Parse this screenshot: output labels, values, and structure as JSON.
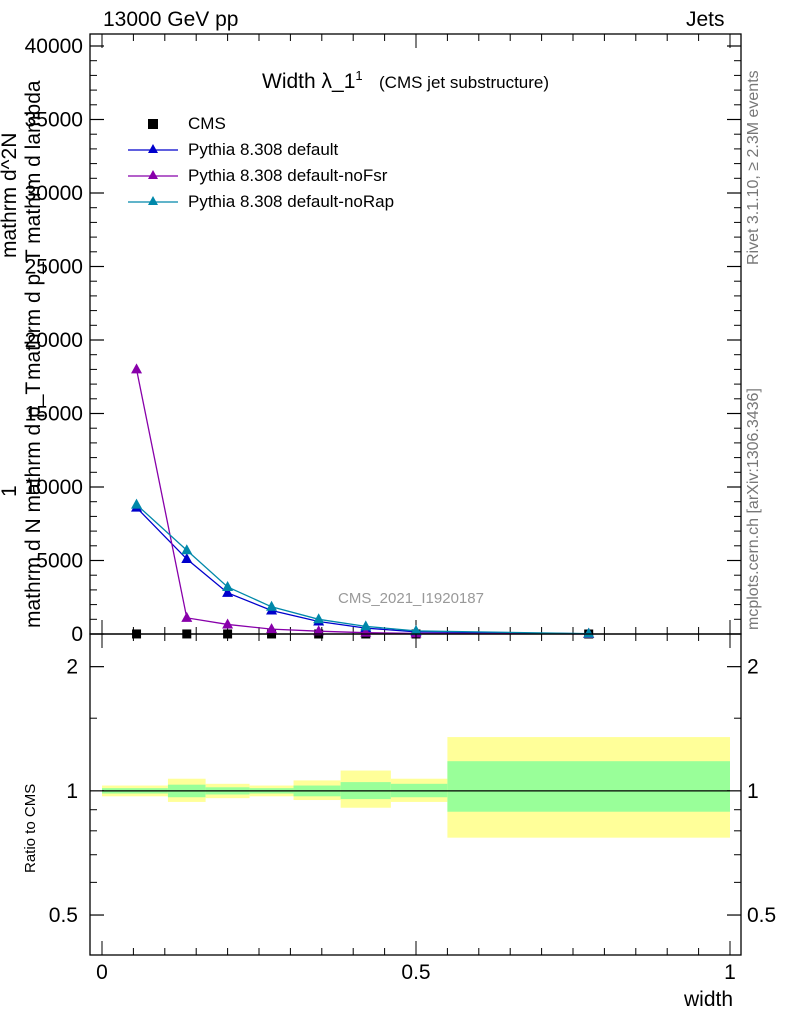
{
  "header": {
    "left": "13000 GeV pp",
    "right": "Jets"
  },
  "side_labels": {
    "rivet": "Rivet 3.1.10, ≥ 2.3M events",
    "mcplots": "mcplots.cern.ch [arXiv:1306.3436]"
  },
  "colors": {
    "cms": "#000000",
    "default": "#0000cc",
    "noFsr": "#8800aa",
    "noRap": "#0088aa",
    "band_stat": "#99ff99",
    "band_syst": "#ffff99",
    "watermark": "#999999"
  },
  "chart_data": [
    {
      "type": "line",
      "title": "Width λ_1",
      "title_sup": "1",
      "subtitle": "(CMS jet substructure)",
      "watermark": "CMS_2021_I1920187",
      "ylabel_lines": [
        "1",
        "mathrm d N mathrm d p_T",
        "mathrm d^2N",
        "mathrm d p_T mathrm d lambda"
      ],
      "xlim": [
        0,
        1
      ],
      "ylim": [
        0,
        40000
      ],
      "yticks": [
        0,
        5000,
        10000,
        15000,
        20000,
        25000,
        30000,
        35000,
        40000
      ],
      "ytick_labels": [
        "0",
        "5000",
        "10000",
        "15000",
        "20000",
        "25000",
        "30000",
        "35000",
        "40000"
      ],
      "legend_position": "top-left",
      "series": [
        {
          "name": "CMS",
          "marker": "square",
          "x": [
            0.055,
            0.135,
            0.2,
            0.27,
            0.345,
            0.42,
            0.5,
            0.775
          ],
          "y": [
            3,
            3,
            2,
            2,
            1,
            1,
            0.5,
            0.1
          ]
        },
        {
          "name": "Pythia 8.308 default",
          "marker": "triangle",
          "x": [
            0.055,
            0.135,
            0.2,
            0.27,
            0.345,
            0.42,
            0.5,
            0.775
          ],
          "y": [
            8600,
            5100,
            2800,
            1600,
            850,
            400,
            150,
            15
          ]
        },
        {
          "name": "Pythia 8.308 default-noFsr",
          "marker": "triangle",
          "x": [
            0.055,
            0.135,
            0.2,
            0.27,
            0.345,
            0.42,
            0.5,
            0.775
          ],
          "y": [
            18000,
            1100,
            650,
            330,
            190,
            90,
            40,
            4
          ]
        },
        {
          "name": "Pythia 8.308 default-noRap",
          "marker": "triangle",
          "x": [
            0.055,
            0.135,
            0.2,
            0.27,
            0.345,
            0.42,
            0.5,
            0.775
          ],
          "y": [
            8800,
            5700,
            3200,
            1850,
            1000,
            520,
            210,
            22
          ]
        }
      ]
    },
    {
      "type": "area",
      "ylabel": "Ratio to CMS",
      "xlabel": "width",
      "xlim": [
        0,
        1
      ],
      "ylim": [
        0.4,
        2.4
      ],
      "yscale": "log",
      "ytick_labels": [
        "0.5",
        "1",
        "2"
      ],
      "yticks": [
        0.5,
        1,
        2
      ],
      "xticks": [
        0,
        0.5,
        1
      ],
      "xtick_labels": [
        "0",
        "0.5",
        "1"
      ],
      "bands": [
        {
          "x0": 0.0,
          "x1": 0.105,
          "stat": [
            0.985,
            1.015
          ],
          "syst": [
            0.97,
            1.03
          ]
        },
        {
          "x0": 0.105,
          "x1": 0.165,
          "stat": [
            0.965,
            1.035
          ],
          "syst": [
            0.94,
            1.07
          ]
        },
        {
          "x0": 0.165,
          "x1": 0.235,
          "stat": [
            0.98,
            1.02
          ],
          "syst": [
            0.96,
            1.04
          ]
        },
        {
          "x0": 0.235,
          "x1": 0.305,
          "stat": [
            0.985,
            1.015
          ],
          "syst": [
            0.97,
            1.03
          ]
        },
        {
          "x0": 0.305,
          "x1": 0.38,
          "stat": [
            0.97,
            1.03
          ],
          "syst": [
            0.95,
            1.06
          ]
        },
        {
          "x0": 0.38,
          "x1": 0.46,
          "stat": [
            0.955,
            1.05
          ],
          "syst": [
            0.91,
            1.12
          ]
        },
        {
          "x0": 0.46,
          "x1": 0.55,
          "stat": [
            0.965,
            1.04
          ],
          "syst": [
            0.94,
            1.07
          ]
        },
        {
          "x0": 0.55,
          "x1": 1.0,
          "stat": [
            0.89,
            1.18
          ],
          "syst": [
            0.77,
            1.35
          ]
        }
      ]
    }
  ]
}
